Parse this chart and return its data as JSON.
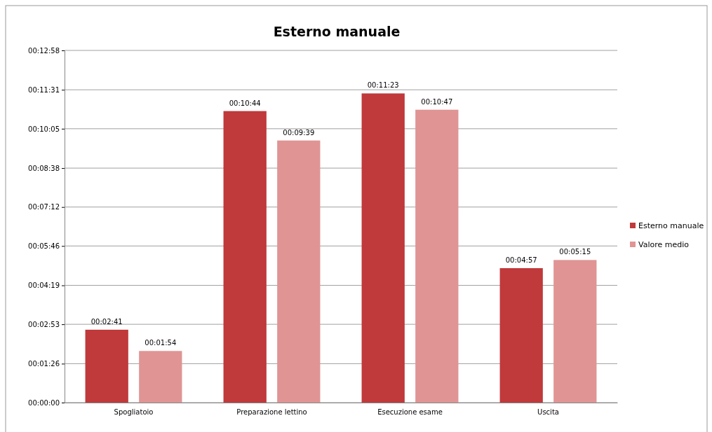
{
  "chart_data": {
    "type": "bar",
    "title": "Esterno manuale",
    "categories": [
      "Spogliatoio",
      "Preparazione lettino",
      "Esecuzione esame",
      "Uscita"
    ],
    "series": [
      {
        "name": "Esterno manuale",
        "color": "#c0393b",
        "values": [
          161,
          644,
          683,
          297
        ],
        "value_labels": [
          "00:02:41",
          "00:10:44",
          "00:11:23",
          "00:04:57"
        ]
      },
      {
        "name": "Valore medio",
        "color": "#e09494",
        "values": [
          114,
          579,
          647,
          315
        ],
        "value_labels": [
          "00:01:54",
          "00:09:39",
          "00:10:47",
          "00:05:15"
        ]
      }
    ],
    "ylim": [
      0,
      778
    ],
    "yticks": [
      {
        "value": 0,
        "label": "00:00:00"
      },
      {
        "value": 86,
        "label": "00:01:26"
      },
      {
        "value": 173,
        "label": "00:02:53"
      },
      {
        "value": 259,
        "label": "00:04:19"
      },
      {
        "value": 346,
        "label": "00:05:46"
      },
      {
        "value": 432,
        "label": "00:07:12"
      },
      {
        "value": 518,
        "label": "00:08:38"
      },
      {
        "value": 605,
        "label": "00:10:05"
      },
      {
        "value": 691,
        "label": "00:11:31"
      },
      {
        "value": 778,
        "label": "00:12:58"
      }
    ],
    "grid": "y",
    "legend": "right"
  }
}
